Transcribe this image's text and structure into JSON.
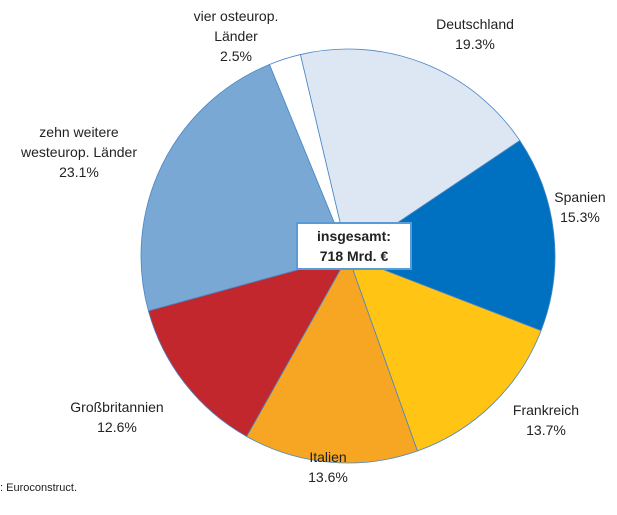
{
  "chart_data": {
    "type": "pie",
    "categories": [
      "Deutschland",
      "Spanien",
      "Frankreich",
      "Italien",
      "Großbritannien",
      "zehn weitere westeurop. Länder",
      "vier osteurop. Länder"
    ],
    "values": [
      19.3,
      15.3,
      13.7,
      13.6,
      12.6,
      23.1,
      2.5
    ],
    "value_labels": [
      "19.3%",
      "15.3%",
      "13.7%",
      "13.6%",
      "12.6%",
      "23.1%",
      "2.5%"
    ],
    "colors": [
      "#dde6f3",
      "#0070c0",
      "#ffc414",
      "#f6a623",
      "#c1272d",
      "#7aa8d4",
      "#ffffff"
    ],
    "center_label": [
      "insgesamt:",
      "718 Mrd. €"
    ],
    "source": ": Euroconstruct."
  }
}
